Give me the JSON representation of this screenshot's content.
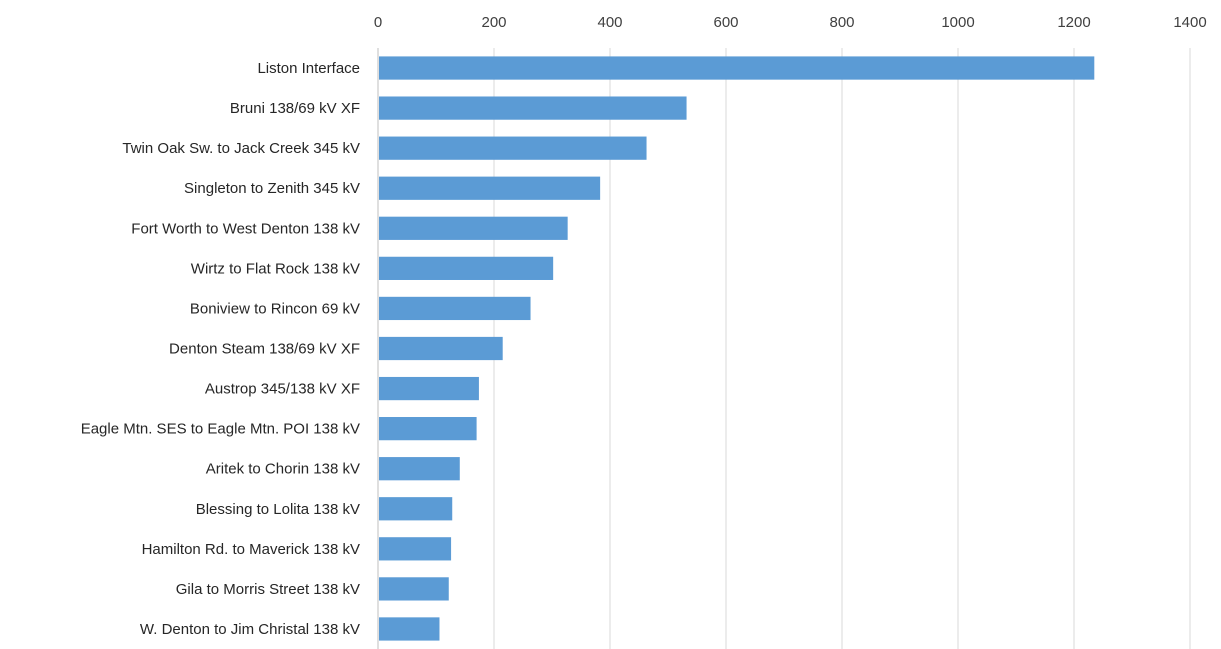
{
  "chart_data": {
    "type": "bar",
    "orientation": "horizontal",
    "x_axis_position": "top",
    "title": "",
    "xlabel": "",
    "ylabel": "",
    "xlim": [
      0,
      1400
    ],
    "ticks": [
      0,
      200,
      400,
      600,
      800,
      1000,
      1200,
      1400
    ],
    "grid": true,
    "legend": "none",
    "bar_color": "#5b9bd5",
    "categories": [
      "Liston Interface",
      "Bruni 138/69 kV XF",
      "Twin Oak Sw. to Jack Creek 345 kV",
      "Singleton to Zenith 345 kV",
      "Fort Worth to West Denton 138 kV",
      "Wirtz to Flat Rock 138 kV",
      "Boniview to Rincon 69 kV",
      "Denton Steam 138/69 kV XF",
      "Austrop 345/138 kV XF",
      "Eagle Mtn. SES to Eagle Mtn. POI 138 kV",
      "Aritek to Chorin 138 kV",
      "Blessing to Lolita 138 kV",
      "Hamilton Rd. to Maverick 138 kV",
      "Gila to Morris Street 138 kV",
      "W. Denton to Jim Christal 138 kV"
    ],
    "values": [
      1235,
      532,
      463,
      383,
      327,
      302,
      263,
      215,
      174,
      170,
      141,
      128,
      126,
      122,
      106
    ]
  }
}
